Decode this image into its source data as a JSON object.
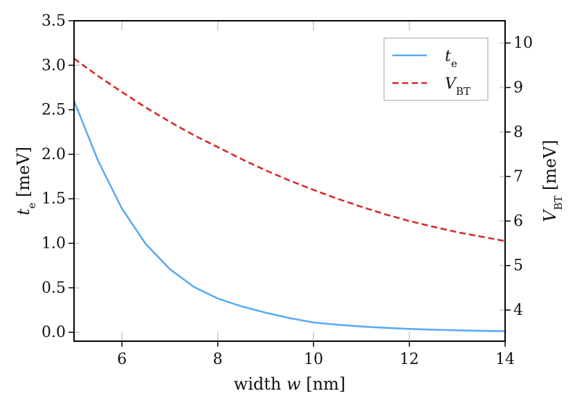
{
  "chart_data": {
    "type": "line",
    "x_axis": {
      "label_prefix": "width ",
      "label_var": "w",
      "label_unit": " [nm]",
      "range": [
        5,
        14
      ],
      "ticks": [
        6,
        8,
        10,
        12,
        14
      ],
      "tick_labels": [
        "6",
        "8",
        "10",
        "12",
        "14"
      ]
    },
    "y_axis_left": {
      "label_var": "t",
      "label_sub": "e",
      "label_unit": " [meV]",
      "range": [
        -0.1,
        3.5
      ],
      "ticks": [
        0.0,
        0.5,
        1.0,
        1.5,
        2.0,
        2.5,
        3.0,
        3.5
      ],
      "tick_labels": [
        "0.0",
        "0.5",
        "1.0",
        "1.5",
        "2.0",
        "2.5",
        "3.0",
        "3.5"
      ]
    },
    "y_axis_right": {
      "label_var": "V",
      "label_sub": "BT",
      "label_unit": " [meV]",
      "range": [
        3.3,
        10.5
      ],
      "ticks": [
        4,
        5,
        6,
        7,
        8,
        9,
        10
      ],
      "tick_labels": [
        "4",
        "5",
        "6",
        "7",
        "8",
        "9",
        "10"
      ]
    },
    "series": [
      {
        "name": "t_e",
        "legend_var": "t",
        "legend_sub": "e",
        "axis": "left",
        "color": "#5aaaf0",
        "dash": "none",
        "x": [
          5,
          5.5,
          6,
          6.5,
          7,
          7.5,
          8,
          8.5,
          9,
          9.5,
          10,
          10.5,
          11,
          11.5,
          12,
          12.5,
          13,
          13.5,
          14
        ],
        "y": [
          2.6,
          1.93,
          1.39,
          0.99,
          0.71,
          0.51,
          0.38,
          0.29,
          0.22,
          0.16,
          0.11,
          0.085,
          0.065,
          0.05,
          0.038,
          0.029,
          0.022,
          0.016,
          0.012
        ]
      },
      {
        "name": "V_BT",
        "legend_var": "V",
        "legend_sub": "BT",
        "axis": "right",
        "color": "#d62728",
        "dash": "dashed",
        "x": [
          5,
          5.5,
          6,
          6.5,
          7,
          7.5,
          8,
          8.5,
          9,
          9.5,
          10,
          10.5,
          11,
          11.5,
          12,
          12.5,
          13,
          13.5,
          14
        ],
        "y": [
          9.65,
          9.26,
          8.9,
          8.55,
          8.23,
          7.93,
          7.66,
          7.39,
          7.14,
          6.91,
          6.7,
          6.5,
          6.32,
          6.15,
          6.0,
          5.87,
          5.75,
          5.65,
          5.55
        ]
      }
    ],
    "legend_position": "top-right",
    "grid": "x-major-dashes"
  }
}
